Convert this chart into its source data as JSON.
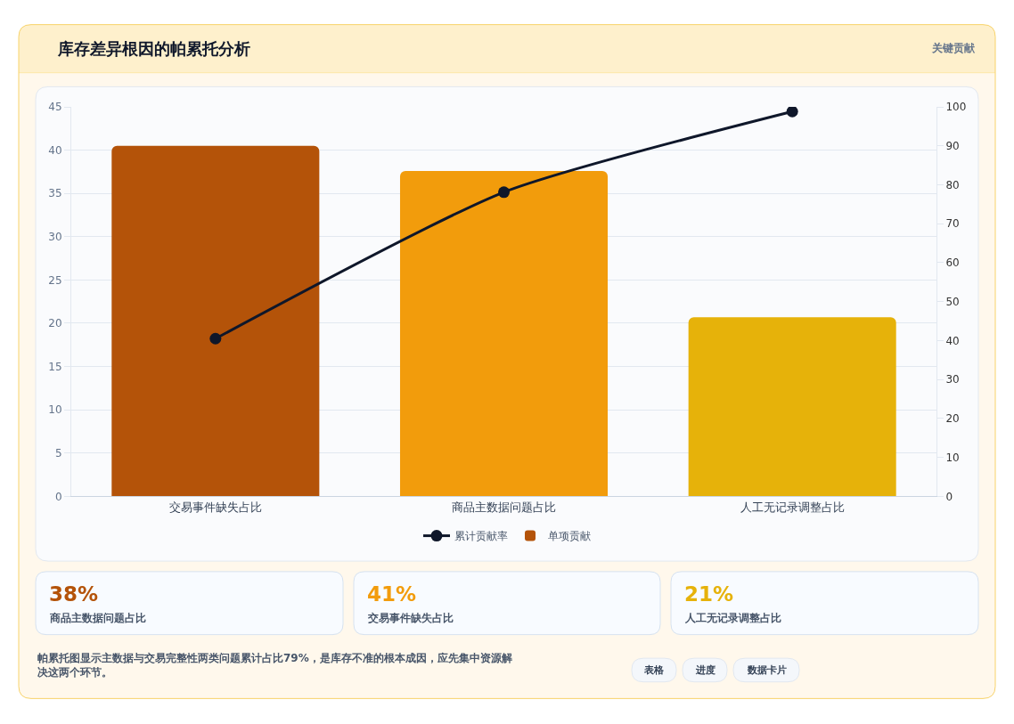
{
  "chart_data": {
    "type": "bar",
    "title": "库存差异根因的帕累托分析",
    "categories": [
      "交易事件缺失占比",
      "商品主数据问题占比",
      "人工无记录调整占比"
    ],
    "series": [
      {
        "name": "累计贡献率",
        "type": "line",
        "axis": "y2",
        "color": "#0f172a",
        "marker": "circle",
        "values": [
          40.5,
          78.1,
          98.8
        ]
      },
      {
        "name": "单项贡献",
        "colors": [
          "#b45309",
          "#f29c0c",
          "#e6b20a"
        ],
        "values": [
          40.5,
          37.6,
          20.7
        ]
      }
    ],
    "ylim": [
      0,
      45
    ],
    "yticks": [
      0,
      5,
      10,
      15,
      20,
      25,
      30,
      35,
      40,
      45
    ],
    "y2lim": [
      0,
      100
    ],
    "y2ticks": [
      0,
      10,
      20,
      30,
      40,
      50,
      60,
      70,
      80,
      90,
      100
    ],
    "grid": "y",
    "legend": "bottom",
    "annotations": [
      "关键贡献",
      "38%",
      "商品主数据问题占比",
      "41%",
      "交易事件缺失占比",
      "21%",
      "人工无记录调整占比",
      "帕累托图显示主数据与交易完整性两类问题累计占比79%，是库存不准的根本成因，应先集中资源解决这两个环节。",
      "表格",
      "进度",
      "数据卡片"
    ]
  }
}
